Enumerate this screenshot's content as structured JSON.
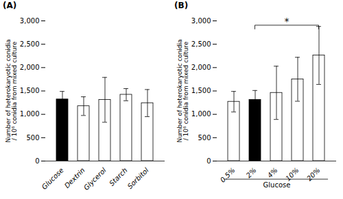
{
  "chart_data": [
    {
      "type": "bar",
      "title": "(A)",
      "categories": [
        "Glucose",
        "Dextrin",
        "Glycerol",
        "Starch",
        "Sorbitol"
      ],
      "values": [
        1320,
        1175,
        1310,
        1420,
        1240
      ],
      "errors": [
        170,
        200,
        480,
        130,
        290
      ],
      "colors": [
        "#000000",
        "#ffffff",
        "#ffffff",
        "#ffffff",
        "#ffffff"
      ],
      "ylabel": "Number of heterokaryotic conidia\n/ 10⁶ conidia from mixed culture",
      "ylim": [
        0,
        3000
      ],
      "yticks": [
        0,
        500,
        1000,
        1500,
        2000,
        2500,
        3000
      ]
    },
    {
      "type": "bar",
      "title": "(B)",
      "categories": [
        "0.5%",
        "2%",
        "4%",
        "10%",
        "20%"
      ],
      "values": [
        1270,
        1310,
        1460,
        1750,
        2260
      ],
      "errors": [
        220,
        200,
        570,
        470,
        620
      ],
      "colors": [
        "#ffffff",
        "#000000",
        "#ffffff",
        "#ffffff",
        "#ffffff"
      ],
      "ylabel": "Number of heterokaryotic conidia\n/ 10⁶ conidia from mixed culture",
      "xlabel": "Glucose",
      "annotations": [
        {
          "text": "*",
          "x1": "2%",
          "x2": "20%",
          "y": 2900
        }
      ],
      "ylim": [
        0,
        3000
      ],
      "yticks": [
        0,
        500,
        1000,
        1500,
        2000,
        2500,
        3000
      ]
    }
  ]
}
